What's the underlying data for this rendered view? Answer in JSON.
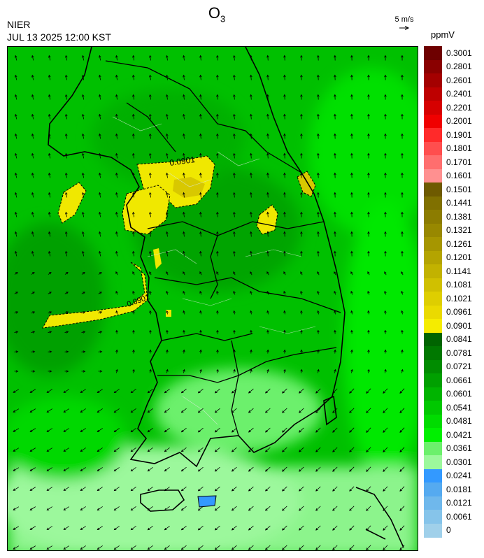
{
  "header": {
    "title_main": "O",
    "title_sub": "3",
    "org": "NIER",
    "timestamp": "JUL 13 2025 12:00 KST",
    "wind_reference": "5 m/s",
    "unit": "ppmV"
  },
  "map": {
    "contour_labels": [
      "0.0901",
      "0.0901"
    ],
    "wind_regime": {
      "north": "southerly",
      "south": "northeasterly"
    }
  },
  "legend": {
    "labels": [
      "0.3001",
      "0.2801",
      "0.2601",
      "0.2401",
      "0.2201",
      "0.2001",
      "0.1901",
      "0.1801",
      "0.1701",
      "0.1601",
      "0.1501",
      "0.1441",
      "0.1381",
      "0.1321",
      "0.1261",
      "0.1201",
      "0.1141",
      "0.1081",
      "0.1021",
      "0.0961",
      "0.0901",
      "0.0841",
      "0.0781",
      "0.0721",
      "0.0661",
      "0.0601",
      "0.0541",
      "0.0481",
      "0.0421",
      "0.0361",
      "0.0301",
      "0.0241",
      "0.0181",
      "0.0121",
      "0.0061",
      "0"
    ],
    "colors": [
      "#6e0000",
      "#8a0000",
      "#a40000",
      "#be0000",
      "#d60000",
      "#f00000",
      "#ff2a2a",
      "#ff4e4e",
      "#ff6e6e",
      "#ff9090",
      "#6e5a00",
      "#807000",
      "#8c7c00",
      "#988800",
      "#a69600",
      "#b4a400",
      "#c2b200",
      "#d0c000",
      "#dece00",
      "#eada00",
      "#f5ec00",
      "#006400",
      "#007800",
      "#008c00",
      "#00a000",
      "#00b400",
      "#00c800",
      "#00dc00",
      "#00f000",
      "#6cf06c",
      "#9cf89c",
      "#3399ff",
      "#55aaf0",
      "#6fb8ec",
      "#86c4ea",
      "#a0d0ea"
    ]
  }
}
